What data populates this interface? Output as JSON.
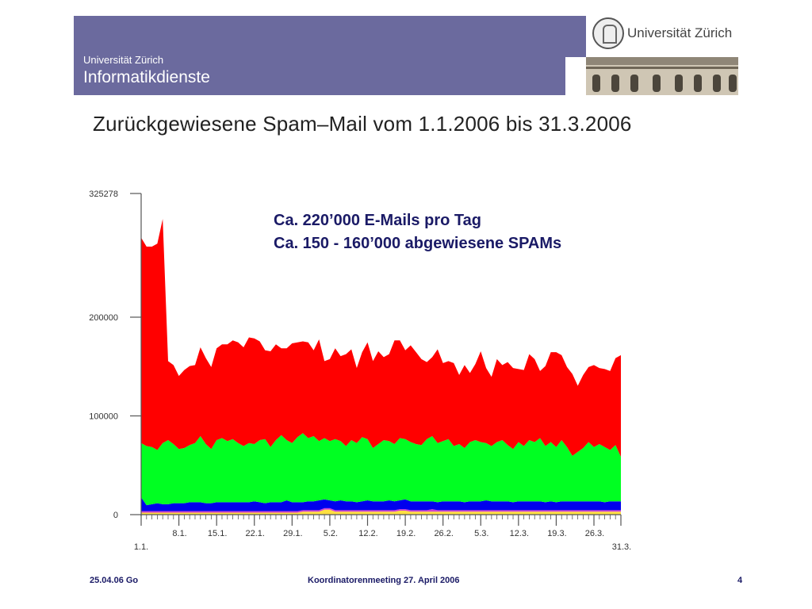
{
  "header": {
    "institution": "Universität Zürich",
    "department": "Informatikdienste",
    "logo_text": "Universität Zürich",
    "color": "#6b6a9e"
  },
  "slide": {
    "title": "Zurückgewiesene Spam–Mail vom 1.1.2006 bis 31.3.2006",
    "annotation_line1": "Ca. 220’000 E-Mails pro Tag",
    "annotation_line2": "Ca. 150 - 160’000 abgewiesene SPAMs"
  },
  "footer": {
    "left": "25.04.06 Go",
    "center": "Koordinatorenmeeting 27. April 2006",
    "page": "4"
  },
  "chart_data": {
    "type": "area",
    "stacked": true,
    "title": "",
    "xlabel": "",
    "ylabel": "",
    "ylim": [
      0,
      325278
    ],
    "yticks": [
      0,
      100000,
      200000,
      325278
    ],
    "ytick_labels": [
      "0",
      "100000",
      "200000",
      "325278"
    ],
    "x": [
      "1.1.",
      "2.1.",
      "3.1.",
      "4.1.",
      "5.1.",
      "6.1.",
      "7.1.",
      "8.1.",
      "9.1.",
      "10.1.",
      "11.1.",
      "12.1.",
      "13.1.",
      "14.1.",
      "15.1.",
      "16.1.",
      "17.1.",
      "18.1.",
      "19.1.",
      "20.1.",
      "21.1.",
      "22.1.",
      "23.1.",
      "24.1.",
      "25.1.",
      "26.1.",
      "27.1.",
      "28.1.",
      "29.1.",
      "30.1.",
      "31.1.",
      "1.2.",
      "2.2.",
      "3.2.",
      "4.2.",
      "5.2.",
      "6.2.",
      "7.2.",
      "8.2.",
      "9.2.",
      "10.2.",
      "11.2.",
      "12.2.",
      "13.2.",
      "14.2.",
      "15.2.",
      "16.2.",
      "17.2.",
      "18.2.",
      "19.2.",
      "20.2.",
      "21.2.",
      "22.2.",
      "23.2.",
      "24.2.",
      "25.2.",
      "26.2.",
      "27.2.",
      "28.2.",
      "1.3.",
      "2.3.",
      "3.3.",
      "4.3.",
      "5.3.",
      "6.3.",
      "7.3.",
      "8.3.",
      "9.3.",
      "10.3.",
      "11.3.",
      "12.3.",
      "13.3.",
      "14.3.",
      "15.3.",
      "16.3.",
      "17.3.",
      "18.3.",
      "19.3.",
      "20.3.",
      "21.3.",
      "22.3.",
      "23.3.",
      "24.3.",
      "25.3.",
      "26.3.",
      "27.3.",
      "28.3.",
      "29.3.",
      "30.3.",
      "31.3."
    ],
    "xtick_labels": [
      "1.1.",
      "8.1.",
      "15.1.",
      "22.1.",
      "29.1.",
      "5.2.",
      "12.2.",
      "19.2.",
      "26.2.",
      "5.3.",
      "12.3.",
      "19.3.",
      "26.3.",
      "31.3."
    ],
    "xtick_indices": [
      0,
      7,
      14,
      21,
      28,
      35,
      42,
      49,
      56,
      63,
      70,
      77,
      84,
      89
    ],
    "series": [
      {
        "color": "#ffe040",
        "values": [
          2000,
          2000,
          2000,
          2000,
          2000,
          2000,
          2000,
          2000,
          2000,
          2000,
          2000,
          2000,
          2000,
          2000,
          2000,
          2000,
          2000,
          2000,
          2000,
          2000,
          2000,
          2000,
          2000,
          2000,
          2000,
          2000,
          2000,
          2000,
          2000,
          2000,
          3000,
          3000,
          3000,
          3000,
          5000,
          5000,
          3000,
          3000,
          3000,
          3000,
          3000,
          3000,
          3000,
          3000,
          3000,
          3000,
          3000,
          3000,
          4000,
          4000,
          3000,
          3000,
          3000,
          3000,
          3000,
          3000,
          3000,
          3000,
          3000,
          3000,
          3000,
          3000,
          3000,
          3000,
          3000,
          3000,
          3000,
          3000,
          3000,
          3000,
          3000,
          3000,
          3000,
          3000,
          3000,
          3000,
          3000,
          3000,
          3000,
          3000,
          3000,
          3000,
          3000,
          3000,
          3000,
          3000,
          3000,
          3000,
          3000,
          3000
        ]
      },
      {
        "color": "#d040d0",
        "values": [
          1500,
          1500,
          1500,
          1500,
          1500,
          1500,
          1500,
          1500,
          1500,
          1500,
          1500,
          1500,
          1500,
          1500,
          1500,
          1500,
          1500,
          1500,
          1500,
          1500,
          1500,
          1500,
          1500,
          1500,
          1500,
          1500,
          1500,
          1500,
          1500,
          1500,
          1500,
          1500,
          1500,
          1500,
          1500,
          1500,
          1500,
          1500,
          1500,
          1500,
          1500,
          1500,
          1500,
          1500,
          1500,
          1500,
          1500,
          1500,
          1500,
          1500,
          1500,
          1500,
          1500,
          1500,
          2500,
          1500,
          1500,
          1500,
          1500,
          1500,
          1500,
          1500,
          1500,
          1500,
          1500,
          1500,
          1500,
          1500,
          1500,
          1500,
          1500,
          1500,
          1500,
          1500,
          1500,
          1500,
          1500,
          1500,
          1500,
          1500,
          1500,
          1500,
          1500,
          1500,
          1500,
          1500,
          1500,
          1500,
          1500,
          1500
        ]
      },
      {
        "color": "#0000ee",
        "values": [
          14000,
          6000,
          7000,
          8000,
          7000,
          7000,
          8000,
          8000,
          8000,
          9000,
          9000,
          9000,
          8000,
          8000,
          9000,
          9000,
          9000,
          9000,
          9000,
          9000,
          9000,
          10000,
          9000,
          8000,
          9000,
          9000,
          9000,
          11000,
          9000,
          9000,
          8000,
          9000,
          9000,
          10000,
          9000,
          8000,
          9000,
          10000,
          9000,
          9000,
          8000,
          9000,
          10000,
          9000,
          9000,
          9000,
          10000,
          9000,
          9000,
          10000,
          9000,
          9000,
          9000,
          9000,
          8000,
          8000,
          9000,
          9000,
          9000,
          9000,
          8000,
          9000,
          9000,
          9000,
          10000,
          9000,
          9000,
          9000,
          9000,
          8000,
          9000,
          9000,
          9000,
          9000,
          9000,
          8000,
          9000,
          8000,
          9000,
          9000,
          9000,
          9000,
          9000,
          9000,
          9000,
          9000,
          8000,
          9000,
          9000,
          9000
        ]
      },
      {
        "color": "#00ff22",
        "values": [
          55000,
          60000,
          58000,
          54000,
          62000,
          65000,
          60000,
          55000,
          56000,
          58000,
          60000,
          67000,
          60000,
          55000,
          63000,
          65000,
          62000,
          64000,
          60000,
          57000,
          60000,
          58000,
          63000,
          65000,
          56000,
          63000,
          68000,
          61000,
          60000,
          66000,
          70000,
          64000,
          66000,
          60000,
          62000,
          60000,
          63000,
          60000,
          56000,
          62000,
          60000,
          65000,
          62000,
          54000,
          58000,
          62000,
          60000,
          58000,
          63000,
          61000,
          60000,
          58000,
          57000,
          63000,
          66000,
          60000,
          61000,
          63000,
          56000,
          58000,
          55000,
          60000,
          62000,
          60000,
          58000,
          56000,
          60000,
          62000,
          57000,
          54000,
          60000,
          56000,
          62000,
          60000,
          64000,
          57000,
          60000,
          56000,
          62000,
          55000,
          46000,
          50000,
          54000,
          60000,
          55000,
          58000,
          56000,
          52000,
          57000,
          45000
        ]
      },
      {
        "color": "#ff0000",
        "values": [
          208000,
          202000,
          203000,
          209000,
          227000,
          80000,
          80000,
          74000,
          79000,
          80000,
          79000,
          90000,
          87000,
          83000,
          93000,
          95000,
          98000,
          100000,
          102000,
          100000,
          107000,
          107000,
          100000,
          90000,
          97000,
          97000,
          88000,
          93000,
          101000,
          96000,
          93000,
          97000,
          87000,
          103000,
          78000,
          83000,
          92000,
          86000,
          93000,
          92000,
          76000,
          86000,
          98000,
          88000,
          94000,
          84000,
          88000,
          105000,
          99000,
          90000,
          98000,
          93000,
          87000,
          78000,
          80000,
          95000,
          79000,
          79000,
          84000,
          70000,
          84000,
          70000,
          77000,
          92000,
          76000,
          70000,
          84000,
          76000,
          84000,
          82000,
          74000,
          77000,
          87000,
          84000,
          68000,
          81000,
          91000,
          96000,
          86000,
          81000,
          83000,
          67000,
          74000,
          76000,
          83000,
          77000,
          79000,
          80000,
          88000,
          103000
        ]
      }
    ],
    "grid": false,
    "legend": "none"
  }
}
